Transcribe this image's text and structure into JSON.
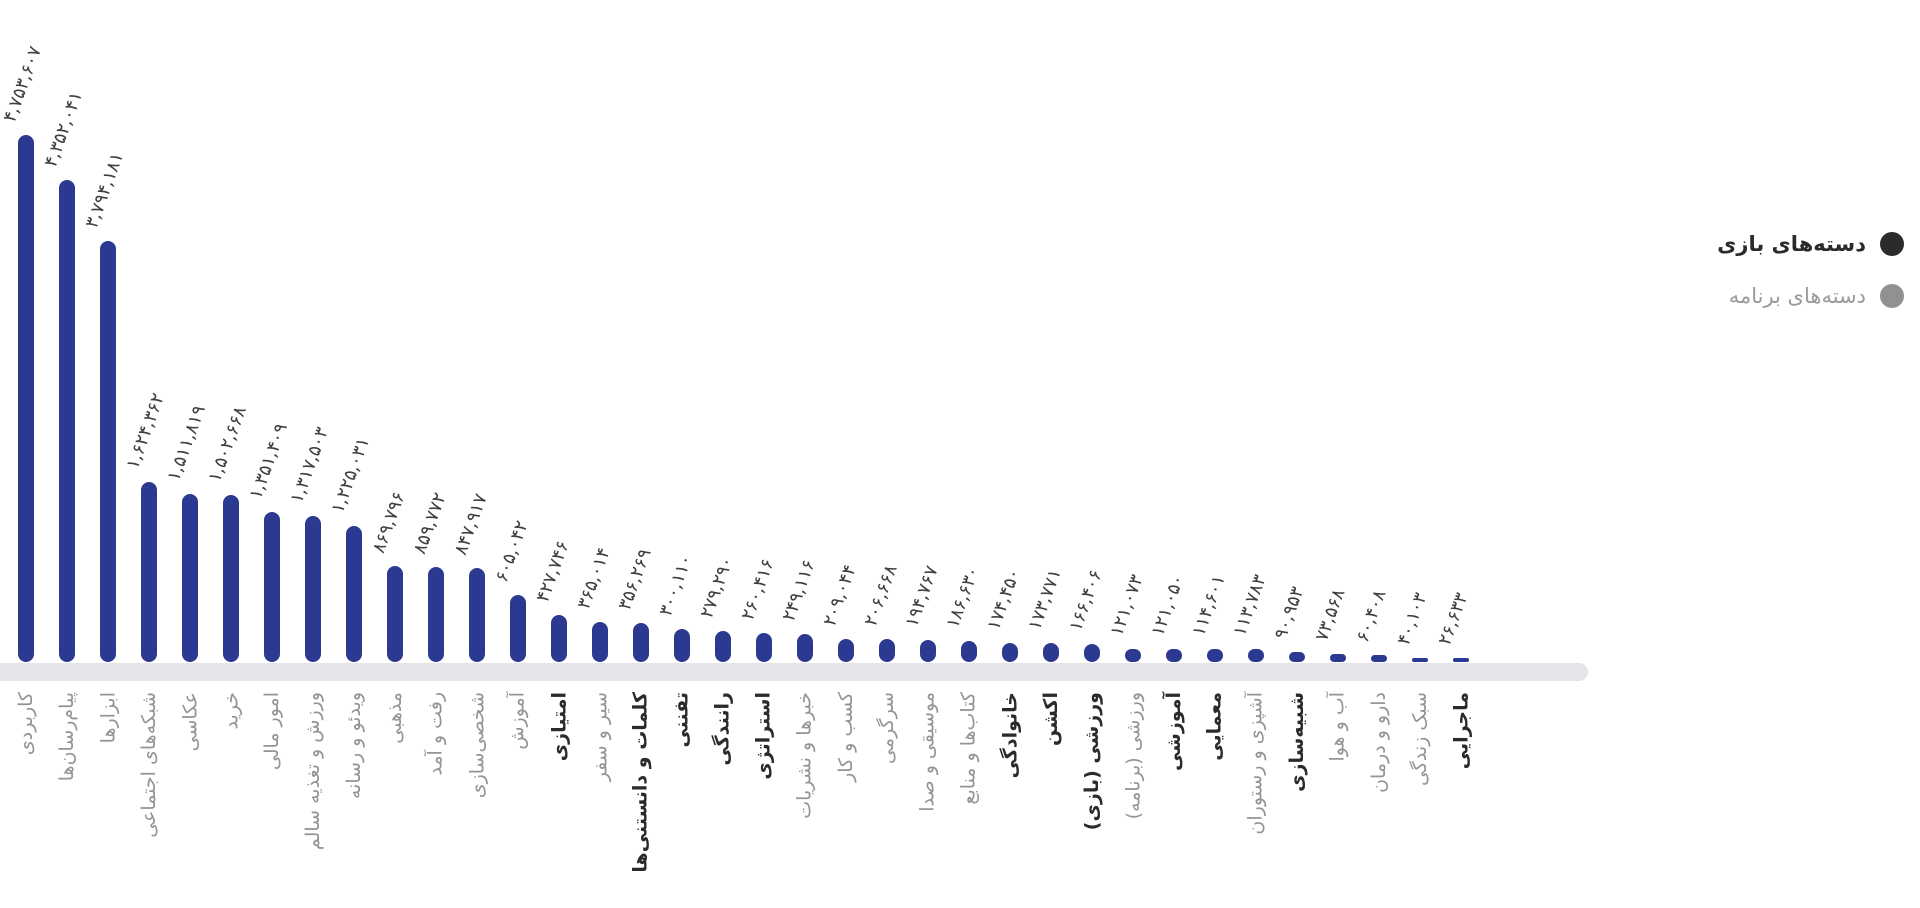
{
  "colors": {
    "bar": "#2b3990",
    "axis_line": "#e5e5e9",
    "game_label": "#2b2b2b",
    "app_label": "#949494",
    "value_label": "#3f3f3f"
  },
  "legend": {
    "items": [
      {
        "label": "دسته‌های بازی",
        "group": "game",
        "color": "#2b2b2b"
      },
      {
        "label": "دسته‌های برنامه",
        "group": "app",
        "color": "#919191"
      }
    ]
  },
  "chart_data": {
    "type": "bar",
    "title": "",
    "xlabel": "",
    "ylabel": "",
    "orientation": "vertical",
    "grid": false,
    "legend_position": "right",
    "ylim": [
      0,
      4753607
    ],
    "groups_legend": {
      "game": "دسته‌های بازی",
      "app": "دسته‌های برنامه"
    },
    "bars": [
      {
        "category": "کاربردی",
        "value": 4753607,
        "value_label": "۴,۷۵۳,۶۰۷",
        "group": "app"
      },
      {
        "category": "پیام‌رسان‌ها",
        "value": 4352041,
        "value_label": "۴,۳۵۲,۰۴۱",
        "group": "app"
      },
      {
        "category": "ابزارها",
        "value": 3794181,
        "value_label": "۳,۷۹۴,۱۸۱",
        "group": "app"
      },
      {
        "category": "شبکه‌های اجتماعی",
        "value": 1624362,
        "value_label": "۱,۶۲۴,۳۶۲",
        "group": "app"
      },
      {
        "category": "عکاسی",
        "value": 1511819,
        "value_label": "۱,۵۱۱,۸۱۹",
        "group": "app"
      },
      {
        "category": "خرید",
        "value": 1502668,
        "value_label": "۱,۵۰۲,۶۶۸",
        "group": "app"
      },
      {
        "category": "امور مالی",
        "value": 1351409,
        "value_label": "۱,۳۵۱,۴۰۹",
        "group": "app"
      },
      {
        "category": "ورزش و تغذیه سالم",
        "value": 1317503,
        "value_label": "۱,۳۱۷,۵۰۳",
        "group": "app"
      },
      {
        "category": "ویدئو و رسانه",
        "value": 1225031,
        "value_label": "۱,۲۲۵,۰۳۱",
        "group": "app"
      },
      {
        "category": "مذهبی",
        "value": 869796,
        "value_label": "۸۶۹,۷۹۶",
        "group": "app"
      },
      {
        "category": "رفت و آمد",
        "value": 859772,
        "value_label": "۸۵۹,۷۷۲",
        "group": "app"
      },
      {
        "category": "شخصی‌سازی",
        "value": 847917,
        "value_label": "۸۴۷,۹۱۷",
        "group": "app"
      },
      {
        "category": "آموزش",
        "value": 605042,
        "value_label": "۶۰۵,۰۴۲",
        "group": "app"
      },
      {
        "category": "امتیازی",
        "value": 427746,
        "value_label": "۴۲۷,۷۴۶",
        "group": "game"
      },
      {
        "category": "سیر و سفر",
        "value": 365014,
        "value_label": "۳۶۵,۰۱۴",
        "group": "app"
      },
      {
        "category": "کلمات و دانستنی‌ها",
        "value": 356269,
        "value_label": "۳۵۶,۲۶۹",
        "group": "game"
      },
      {
        "category": "تفننی",
        "value": 300110,
        "value_label": "۳۰۰,۱۱۰",
        "group": "game"
      },
      {
        "category": "رانندگی",
        "value": 279290,
        "value_label": "۲۷۹,۲۹۰",
        "group": "game"
      },
      {
        "category": "استراتژی",
        "value": 260416,
        "value_label": "۲۶۰,۴۱۶",
        "group": "game"
      },
      {
        "category": "خبرها و نشریات",
        "value": 249116,
        "value_label": "۲۴۹,۱۱۶",
        "group": "app"
      },
      {
        "category": "کسب و کار",
        "value": 209044,
        "value_label": "۲۰۹,۰۴۴",
        "group": "app"
      },
      {
        "category": "سرگرمی",
        "value": 206668,
        "value_label": "۲۰۶,۶۶۸",
        "group": "app"
      },
      {
        "category": "موسیقی و صدا",
        "value": 194767,
        "value_label": "۱۹۴,۷۶۷",
        "group": "app"
      },
      {
        "category": "کتاب‌ها و منابع",
        "value": 186630,
        "value_label": "۱۸۶,۶۳۰",
        "group": "app"
      },
      {
        "category": "خانوادگی",
        "value": 174450,
        "value_label": "۱۷۴,۴۵۰",
        "group": "game"
      },
      {
        "category": "اکشن",
        "value": 173771,
        "value_label": "۱۷۳,۷۷۱",
        "group": "game"
      },
      {
        "category": "ورزشی (بازی)",
        "value": 166406,
        "value_label": "۱۶۶,۴۰۶",
        "group": "game"
      },
      {
        "category": "ورزشی (برنامه)",
        "value": 121073,
        "value_label": "۱۲۱,۰۷۳",
        "group": "app"
      },
      {
        "category": "آموزشی",
        "value": 121050,
        "value_label": "۱۲۱,۰۵۰",
        "group": "game"
      },
      {
        "category": "معمایی",
        "value": 114601,
        "value_label": "۱۱۴,۶۰۱",
        "group": "game"
      },
      {
        "category": "آشپزی و رستوران",
        "value": 113783,
        "value_label": "۱۱۳,۷۸۳",
        "group": "app"
      },
      {
        "category": "شبیه‌سازی",
        "value": 90953,
        "value_label": "۹۰,۹۵۳",
        "group": "game"
      },
      {
        "category": "آب و هوا",
        "value": 73568,
        "value_label": "۷۳,۵۶۸",
        "group": "app"
      },
      {
        "category": "دارو و درمان",
        "value": 60408,
        "value_label": "۶۰,۴۰۸",
        "group": "app"
      },
      {
        "category": "سبک زندگی",
        "value": 40103,
        "value_label": "۴۰,۱۰۳",
        "group": "app"
      },
      {
        "category": "ماجرایی",
        "value": 26633,
        "value_label": "۲۶,۶۳۳",
        "group": "game"
      }
    ]
  }
}
